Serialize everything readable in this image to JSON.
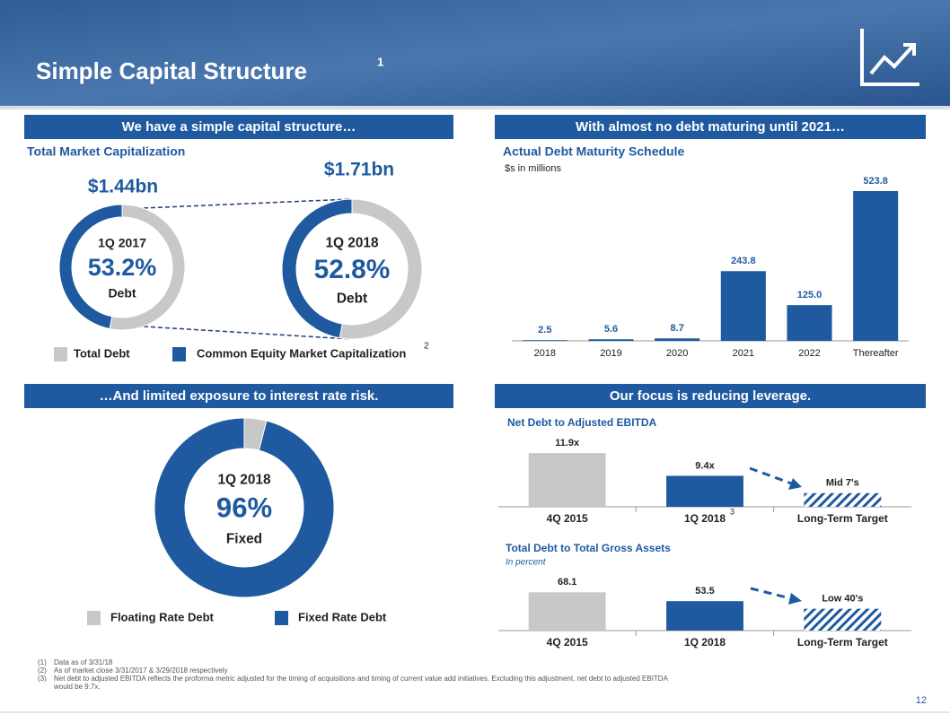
{
  "title": "Simple Capital Structure",
  "title_note": "1",
  "sections": [
    "We have a simple capital structure…",
    "With almost no debt maturing until 2021…",
    "…And limited exposure to interest rate risk.",
    "Our focus is reducing leverage."
  ],
  "chart_data": [
    {
      "type": "pie",
      "donut": true,
      "title": "Total Market Capitalization",
      "label": "$1.44bn",
      "categories": [
        "Total Debt",
        "Common Equity Market Capitalization"
      ],
      "colors": [
        "#c8c8c8",
        "#1f5aa0"
      ],
      "values": [
        53.2,
        46.8
      ],
      "center": {
        "period": "1Q 2017",
        "value_label": "53.2%",
        "caption": "Debt"
      },
      "legend_note": "2"
    },
    {
      "type": "pie",
      "donut": true,
      "label": "$1.71bn",
      "colors": [
        "#c8c8c8",
        "#1f5aa0"
      ],
      "values": [
        52.8,
        47.2
      ],
      "center": {
        "period": "1Q 2018",
        "value_label": "52.8%",
        "caption": "Debt"
      }
    },
    {
      "type": "bar",
      "title": "Actual Debt Maturity Schedule",
      "subtitle": "$s in millions",
      "categories": [
        "2018",
        "2019",
        "2020",
        "2021",
        "2022",
        "Thereafter"
      ],
      "values": [
        2.5,
        5.6,
        8.7,
        243.8,
        125.0,
        523.8
      ],
      "value_labels": [
        "2.5",
        "5.6",
        "8.7",
        "243.8",
        "125.0",
        "523.8"
      ],
      "colors": [
        "#1f5aa0",
        "#1f5aa0",
        "#1f5aa0",
        "#1f5aa0",
        "#1f5aa0",
        "#1f5aa0"
      ]
    },
    {
      "type": "pie",
      "donut": true,
      "categories": [
        "Floating Rate Debt",
        "Fixed Rate Debt"
      ],
      "colors": [
        "#c8c8c8",
        "#1f5aa0"
      ],
      "values": [
        4,
        96
      ],
      "center": {
        "period": "1Q 2018",
        "value_label": "96%",
        "caption": "Fixed"
      }
    },
    {
      "type": "bar",
      "title": "Net Debt to Adjusted EBITDA",
      "categories": [
        "4Q 2015",
        "1Q 2018",
        "Long-Term Target"
      ],
      "values": [
        11.9,
        9.4,
        7.5
      ],
      "value_labels": [
        "11.9x",
        "9.4x",
        "Mid 7's"
      ],
      "colors": [
        "#c8c8c8",
        "#1f5aa0",
        "#1f5aa0"
      ],
      "hatched": [
        false,
        false,
        true
      ],
      "ylim": [
        6,
        12.5
      ],
      "category_note": {
        "index": 1,
        "label": "3"
      }
    },
    {
      "type": "bar",
      "title": "Total Debt to Total Gross Assets",
      "subtitle": "In percent",
      "categories": [
        "4Q 2015",
        "1Q 2018",
        "Long-Term Target"
      ],
      "values": [
        68.1,
        53.5,
        41
      ],
      "value_labels": [
        "68.1",
        "53.5",
        "Low 40's"
      ],
      "colors": [
        "#c8c8c8",
        "#1f5aa0",
        "#1f5aa0"
      ],
      "hatched": [
        false,
        false,
        true
      ],
      "ylim": [
        5,
        73
      ]
    }
  ],
  "footnotes": [
    {
      "marker": "(1)",
      "text": "Data as of 3/31/18"
    },
    {
      "marker": "(2)",
      "text": "As of market close 3/31/2017 & 3/29/2018 respectively"
    },
    {
      "marker": "(3)",
      "text": "Net debt to adjusted EBITDA reflects the proforma metric adjusted for the timing of acquisitions and timing of current value add initiatives. Excluding this adjustment, net debt to adjusted EBITDA"
    },
    {
      "marker": "",
      "text": "would be 9.7x."
    }
  ],
  "page_number": "12"
}
